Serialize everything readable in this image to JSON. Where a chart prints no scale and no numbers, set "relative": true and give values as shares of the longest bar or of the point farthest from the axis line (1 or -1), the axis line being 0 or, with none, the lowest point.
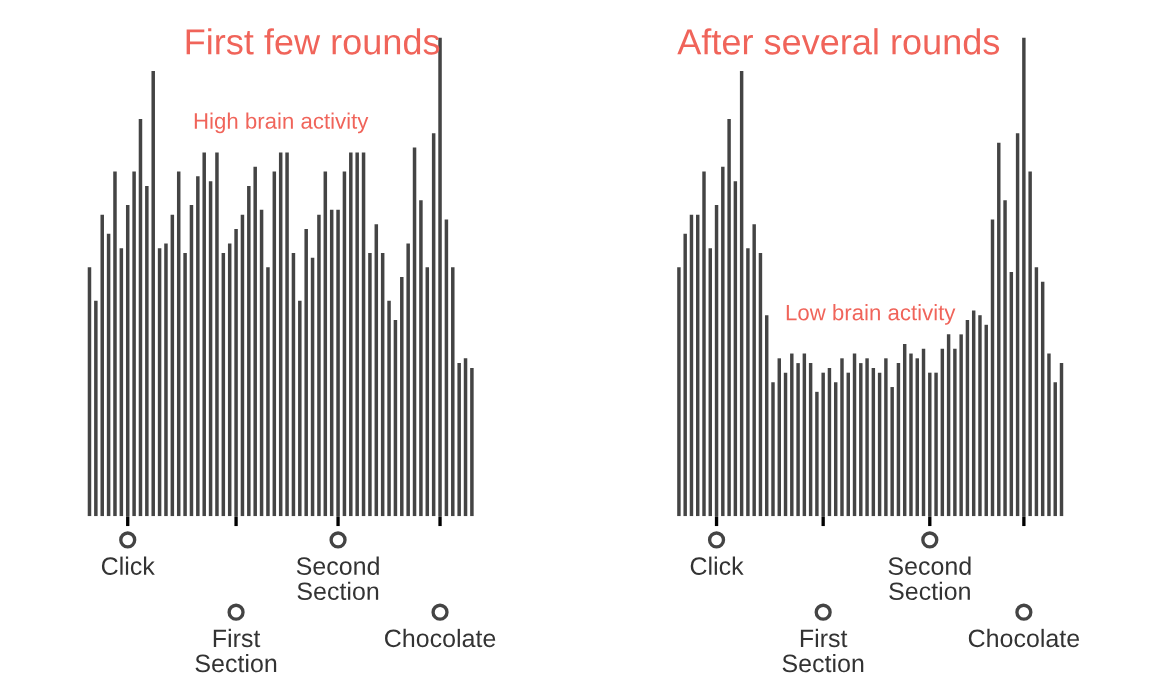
{
  "chart_data": [
    {
      "type": "bar",
      "title": "First few rounds",
      "relative": true,
      "color": "#444444",
      "categories": [
        null,
        null,
        null,
        null,
        null,
        null,
        "Click",
        null,
        null,
        null,
        null,
        null,
        null,
        null,
        null,
        null,
        null,
        null,
        null,
        null,
        null,
        null,
        null,
        "First\nSection",
        null,
        null,
        null,
        null,
        null,
        null,
        null,
        null,
        null,
        null,
        null,
        null,
        null,
        null,
        null,
        "Second\nSection",
        null,
        null,
        null,
        null,
        null,
        null,
        null,
        null,
        null,
        null,
        null,
        null,
        null,
        null,
        null,
        "Chocolate",
        null,
        null,
        null,
        null,
        null
      ],
      "values": [
        0.52,
        0.45,
        0.63,
        0.59,
        0.72,
        0.56,
        0.65,
        0.72,
        0.83,
        0.69,
        0.93,
        0.56,
        0.57,
        0.63,
        0.72,
        0.55,
        0.65,
        0.71,
        0.76,
        0.7,
        0.76,
        0.55,
        0.57,
        0.6,
        0.63,
        0.69,
        0.73,
        0.64,
        0.52,
        0.72,
        0.76,
        0.76,
        0.55,
        0.45,
        0.6,
        0.54,
        0.63,
        0.72,
        0.64,
        0.64,
        0.72,
        0.76,
        0.76,
        0.76,
        0.55,
        0.61,
        0.55,
        0.45,
        0.41,
        0.5,
        0.57,
        0.77,
        0.66,
        0.52,
        0.8,
        1,
        0.62,
        0.52,
        0.32,
        0.33,
        0.31
      ],
      "annotations": [
        "High brain activity"
      ]
    },
    {
      "type": "bar",
      "title": "After several rounds",
      "relative": true,
      "color": "#444444",
      "categories": [
        null,
        null,
        null,
        null,
        null,
        null,
        "Click",
        null,
        null,
        null,
        null,
        null,
        null,
        null,
        null,
        null,
        null,
        null,
        null,
        null,
        null,
        null,
        null,
        "First\nSection",
        null,
        null,
        null,
        null,
        null,
        null,
        null,
        null,
        null,
        null,
        null,
        null,
        null,
        null,
        null,
        null,
        "Second\nSection",
        null,
        null,
        null,
        null,
        null,
        null,
        null,
        null,
        null,
        null,
        null,
        null,
        null,
        null,
        "Chocolate",
        null,
        null,
        null,
        null,
        null,
        null
      ],
      "values": [
        0.52,
        0.59,
        0.63,
        0.63,
        0.72,
        0.56,
        0.65,
        0.73,
        0.83,
        0.7,
        0.93,
        0.56,
        0.61,
        0.55,
        0.42,
        0.28,
        0.33,
        0.3,
        0.34,
        0.32,
        0.34,
        0.32,
        0.26,
        0.3,
        0.31,
        0.28,
        0.33,
        0.3,
        0.34,
        0.32,
        0.33,
        0.31,
        0.3,
        0.33,
        0.27,
        0.32,
        0.36,
        0.34,
        0.33,
        0.35,
        0.3,
        0.3,
        0.35,
        0.38,
        0.35,
        0.38,
        0.41,
        0.43,
        0.42,
        0.4,
        0.62,
        0.78,
        0.66,
        0.51,
        0.8,
        1,
        0.72,
        0.52,
        0.49,
        0.34,
        0.28,
        0.32
      ],
      "annotations": [
        "Low brain activity"
      ]
    }
  ]
}
